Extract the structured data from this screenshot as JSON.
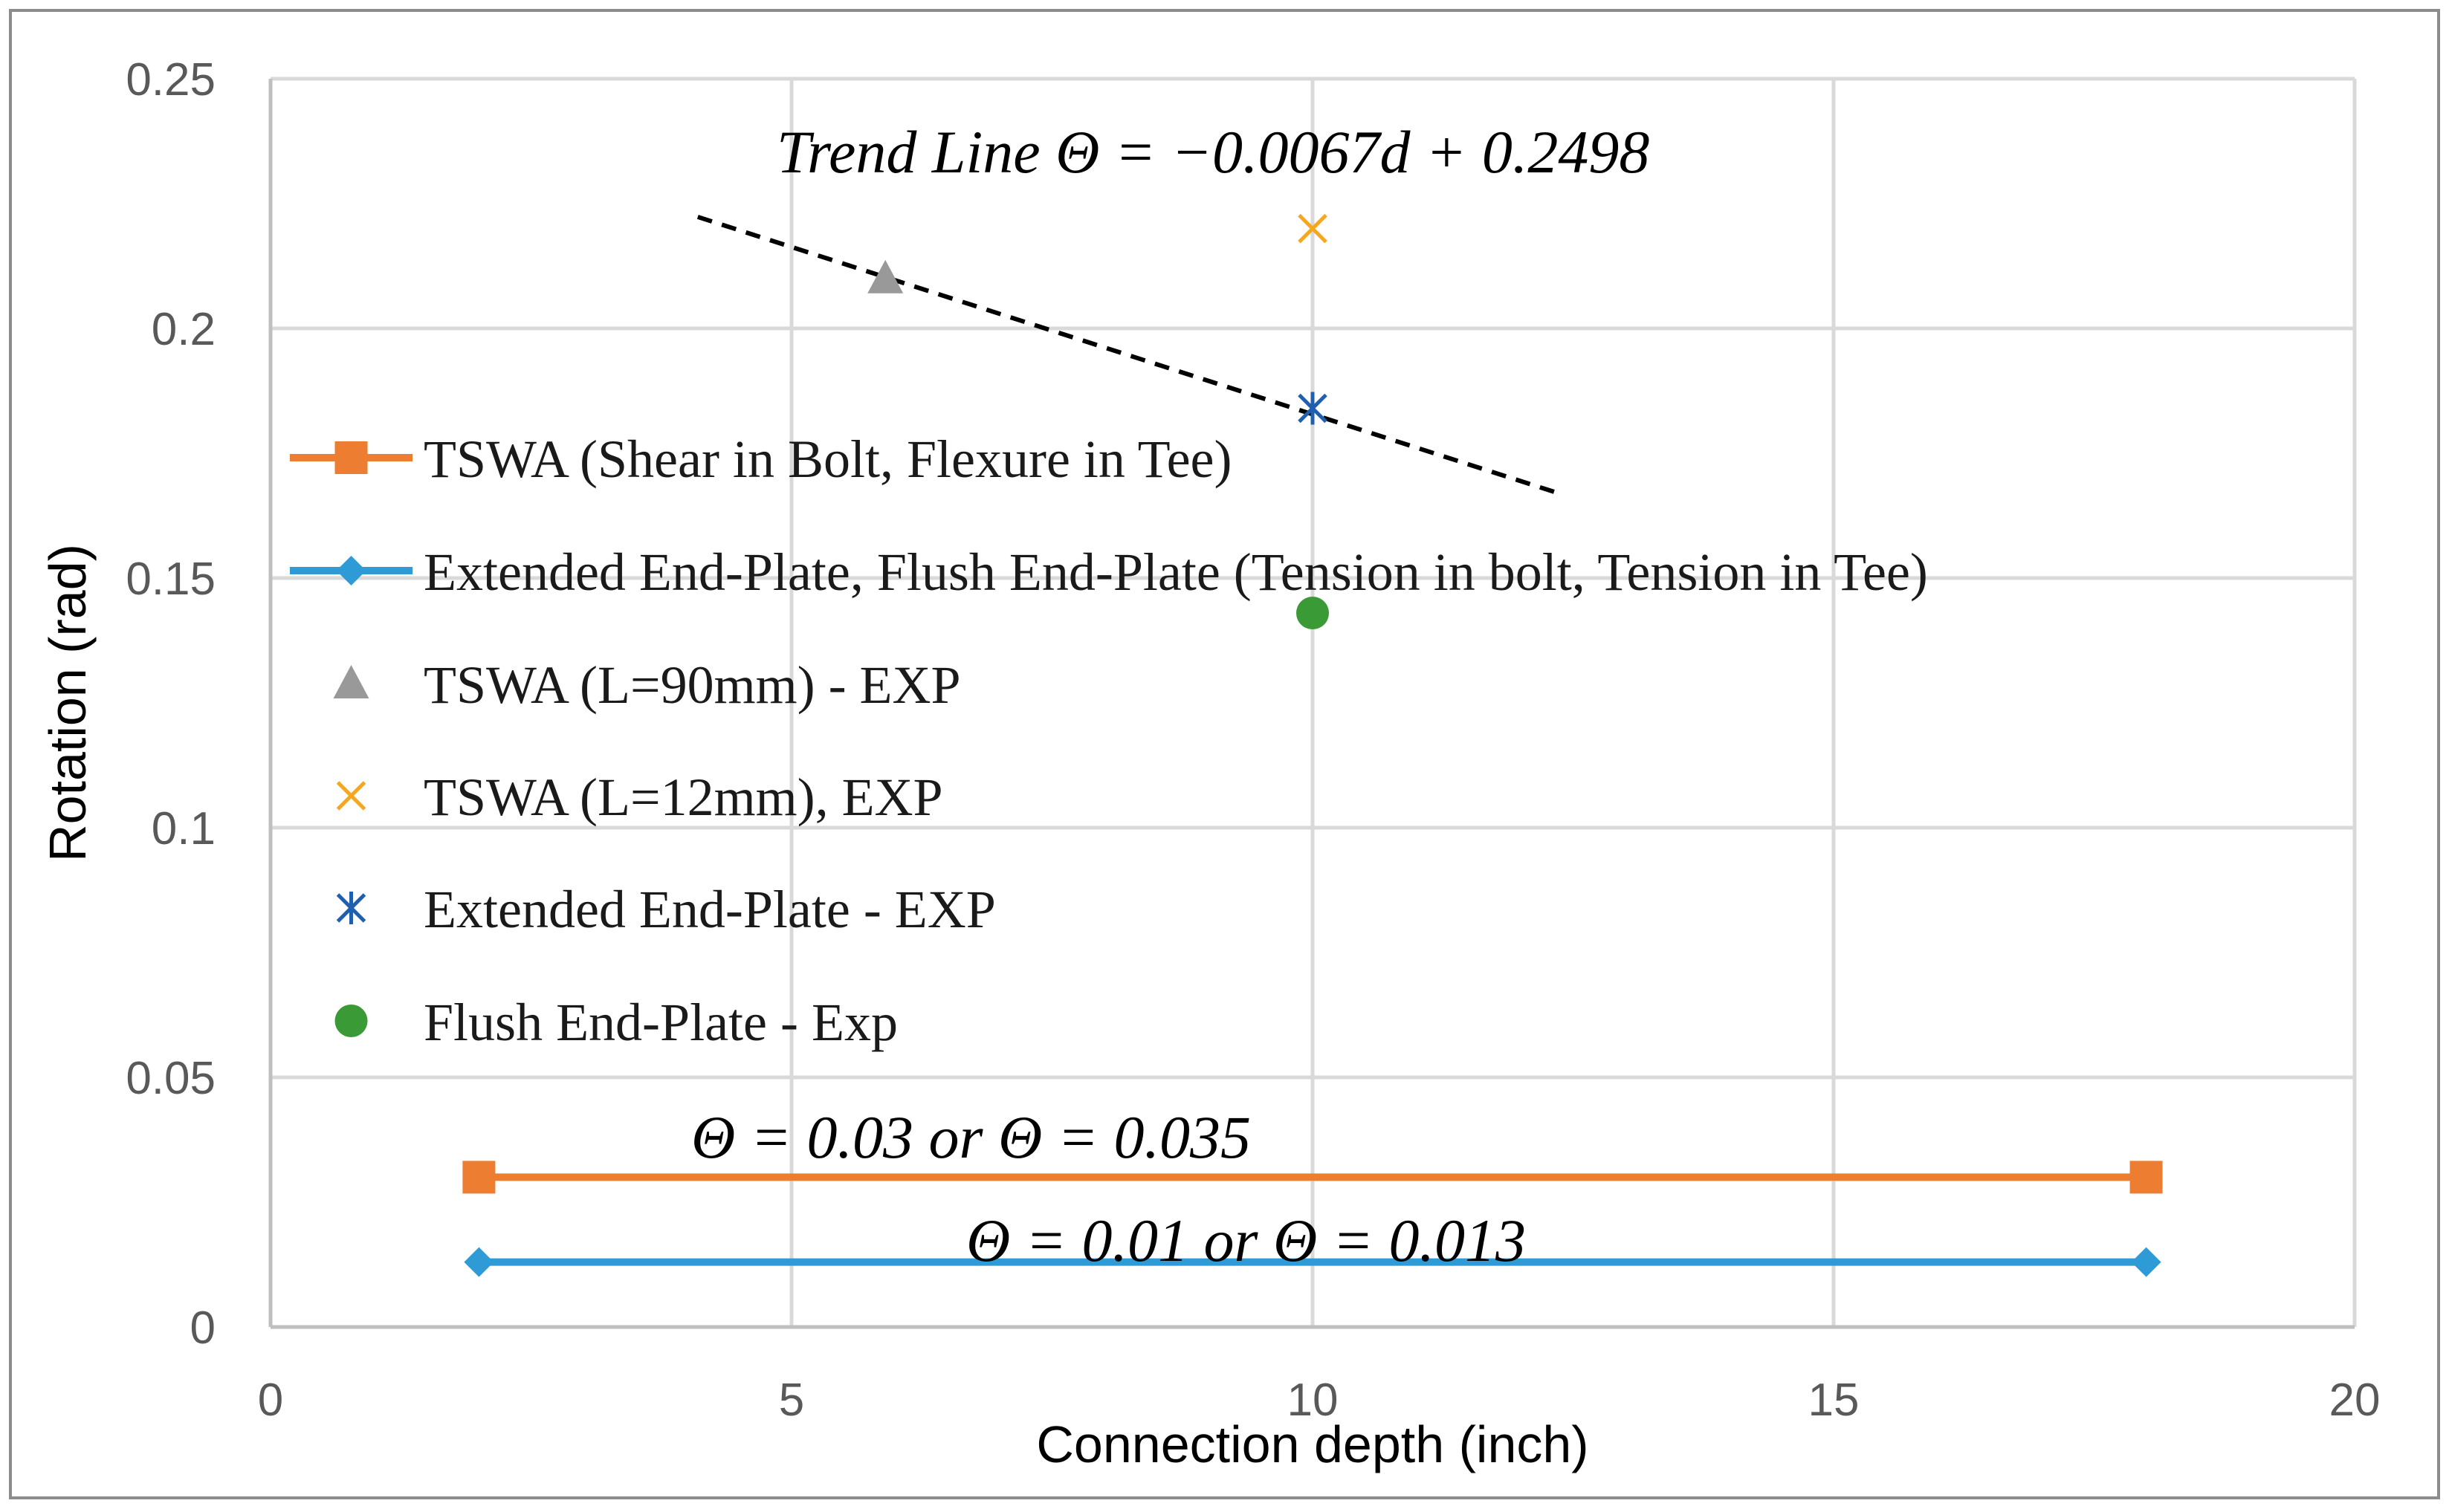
{
  "chart_data": {
    "type": "line",
    "title": "",
    "xlabel": "Connection depth (inch)",
    "ylabel": "Rotation (rad)",
    "xlim": [
      0,
      20
    ],
    "ylim": [
      0,
      0.25
    ],
    "x_ticks": [
      "0",
      "5",
      "10",
      "15",
      "20"
    ],
    "y_ticks": [
      "0",
      "0.05",
      "0.1",
      "0.15",
      "0.2",
      "0.25"
    ],
    "x_tick_values": [
      0,
      5,
      10,
      15,
      20
    ],
    "y_tick_values": [
      0,
      0.05,
      0.1,
      0.15,
      0.2,
      0.25
    ],
    "grid": true,
    "legend_position": "left",
    "series": [
      {
        "name": "TSWA (Shear in Bolt, Flexure in Tee)",
        "color": "#ED7D31",
        "marker": "square",
        "line": true,
        "x": [
          2,
          18
        ],
        "y": [
          0.03,
          0.03
        ]
      },
      {
        "name": "Extended End-Plate, Flush End-Plate (Tension in bolt, Tension in Tee)",
        "color": "#2E9BD6",
        "marker": "diamond",
        "line": true,
        "x": [
          2,
          18
        ],
        "y": [
          0.013,
          0.013
        ]
      },
      {
        "name": "TSWA (L=90mm) - EXP",
        "color": "#999999",
        "marker": "triangle",
        "line": false,
        "x": [
          5.9
        ],
        "y": [
          0.21
        ]
      },
      {
        "name": "TSWA (L=12mm), EXP",
        "color": "#F5A71F",
        "marker": "x",
        "line": false,
        "x": [
          10
        ],
        "y": [
          0.22
        ]
      },
      {
        "name": "Extended End-Plate - EXP",
        "color": "#1F5FAD",
        "marker": "star",
        "line": false,
        "x": [
          10
        ],
        "y": [
          0.184
        ]
      },
      {
        "name": "Flush End-Plate - Exp",
        "color": "#3A9A35",
        "marker": "circle",
        "line": false,
        "x": [
          10
        ],
        "y": [
          0.143
        ]
      }
    ],
    "trend_line": {
      "label": "Trend Line Θ = −0.0067d + 0.2498",
      "slope": -0.0067,
      "intercept": 0.2498,
      "x": [
        4.1,
        12.4
      ],
      "color": "#000000"
    },
    "annotations": [
      {
        "text": "Θ = 0.03 or Θ = 0.035",
        "x": 7,
        "y": 0.038
      },
      {
        "text": "Θ = 0.01 or Θ = 0.013",
        "x": 13,
        "y": 0.016
      }
    ]
  }
}
